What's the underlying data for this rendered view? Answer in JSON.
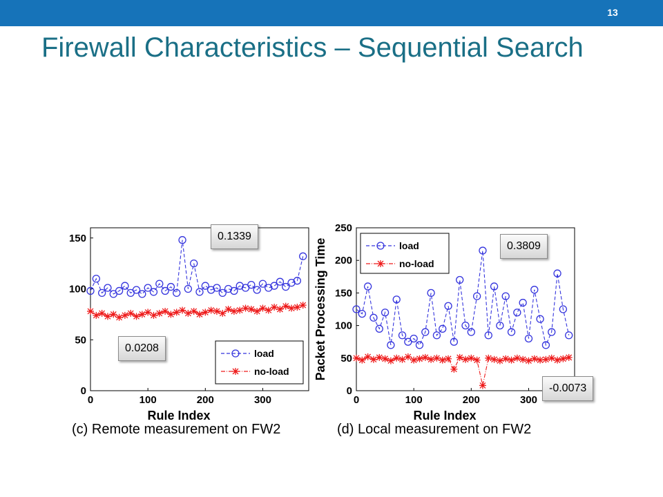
{
  "slide": {
    "number": "13",
    "title": "Firewall Characteristics – Sequential Search"
  },
  "colors": {
    "load": "#3333dd",
    "no_load": "#ee1a1a",
    "bar": "#1673b9",
    "title": "#1a6f86"
  },
  "callouts": [
    "0.1339",
    "0.0208",
    "0.3809",
    "-0.0073"
  ],
  "chart_data": [
    {
      "type": "line",
      "caption": "(c) Remote measurement on FW2",
      "xlabel": "Rule Index",
      "ylabel": "",
      "xlim": [
        0,
        380
      ],
      "ylim": [
        0,
        160
      ],
      "xticks": [
        0,
        100,
        200,
        300
      ],
      "yticks": [
        0,
        50,
        100,
        150
      ],
      "legend_position": "bottom-right",
      "series": [
        {
          "name": "load",
          "marker": "circle",
          "line": "dashed",
          "x": [
            0,
            10,
            20,
            30,
            40,
            50,
            60,
            70,
            80,
            90,
            100,
            110,
            120,
            130,
            140,
            150,
            160,
            170,
            180,
            190,
            200,
            210,
            220,
            230,
            240,
            250,
            260,
            270,
            280,
            290,
            300,
            310,
            320,
            330,
            340,
            350,
            360,
            370
          ],
          "y": [
            98,
            110,
            96,
            101,
            95,
            98,
            103,
            96,
            99,
            95,
            101,
            97,
            105,
            98,
            102,
            96,
            148,
            100,
            125,
            97,
            103,
            99,
            101,
            96,
            100,
            98,
            103,
            101,
            104,
            99,
            105,
            101,
            103,
            107,
            102,
            106,
            108,
            132
          ]
        },
        {
          "name": "no-load",
          "marker": "star",
          "line": "dash-dot",
          "x": [
            0,
            10,
            20,
            30,
            40,
            50,
            60,
            70,
            80,
            90,
            100,
            110,
            120,
            130,
            140,
            150,
            160,
            170,
            180,
            190,
            200,
            210,
            220,
            230,
            240,
            250,
            260,
            270,
            280,
            290,
            300,
            310,
            320,
            330,
            340,
            350,
            360,
            370
          ],
          "y": [
            78,
            74,
            76,
            73,
            75,
            72,
            74,
            76,
            73,
            75,
            77,
            74,
            76,
            78,
            75,
            77,
            79,
            76,
            78,
            75,
            77,
            79,
            78,
            76,
            80,
            78,
            79,
            81,
            80,
            78,
            81,
            79,
            82,
            80,
            83,
            81,
            82,
            84
          ]
        }
      ]
    },
    {
      "type": "line",
      "caption": "(d) Local measurement on FW2",
      "xlabel": "Rule Index",
      "ylabel": "Packet Processing Time",
      "xlim": [
        0,
        380
      ],
      "ylim": [
        0,
        250
      ],
      "xticks": [
        0,
        100,
        200,
        300
      ],
      "yticks": [
        0,
        50,
        100,
        150,
        200,
        250
      ],
      "legend_position": "top-left",
      "series": [
        {
          "name": "load",
          "marker": "circle",
          "line": "dashed",
          "x": [
            0,
            10,
            20,
            30,
            40,
            50,
            60,
            70,
            80,
            90,
            100,
            110,
            120,
            130,
            140,
            150,
            160,
            170,
            180,
            190,
            200,
            210,
            220,
            230,
            240,
            250,
            260,
            270,
            280,
            290,
            300,
            310,
            320,
            330,
            340,
            350,
            360,
            370
          ],
          "y": [
            125,
            118,
            160,
            112,
            95,
            120,
            70,
            140,
            85,
            75,
            80,
            70,
            90,
            150,
            85,
            95,
            130,
            75,
            170,
            100,
            90,
            145,
            215,
            85,
            160,
            100,
            145,
            90,
            120,
            135,
            80,
            155,
            110,
            70,
            90,
            180,
            125,
            85
          ]
        },
        {
          "name": "no-load",
          "marker": "star",
          "line": "dash-dot",
          "x": [
            0,
            10,
            20,
            30,
            40,
            50,
            60,
            70,
            80,
            90,
            100,
            110,
            120,
            130,
            140,
            150,
            160,
            170,
            180,
            190,
            200,
            210,
            220,
            230,
            240,
            250,
            260,
            270,
            280,
            290,
            300,
            310,
            320,
            330,
            340,
            350,
            360,
            370
          ],
          "y": [
            50,
            47,
            52,
            48,
            51,
            49,
            46,
            50,
            48,
            52,
            47,
            49,
            51,
            48,
            50,
            47,
            49,
            33,
            51,
            48,
            50,
            47,
            8,
            50,
            48,
            46,
            49,
            47,
            50,
            48,
            46,
            49,
            47,
            48,
            50,
            47,
            49,
            51
          ]
        }
      ]
    }
  ]
}
